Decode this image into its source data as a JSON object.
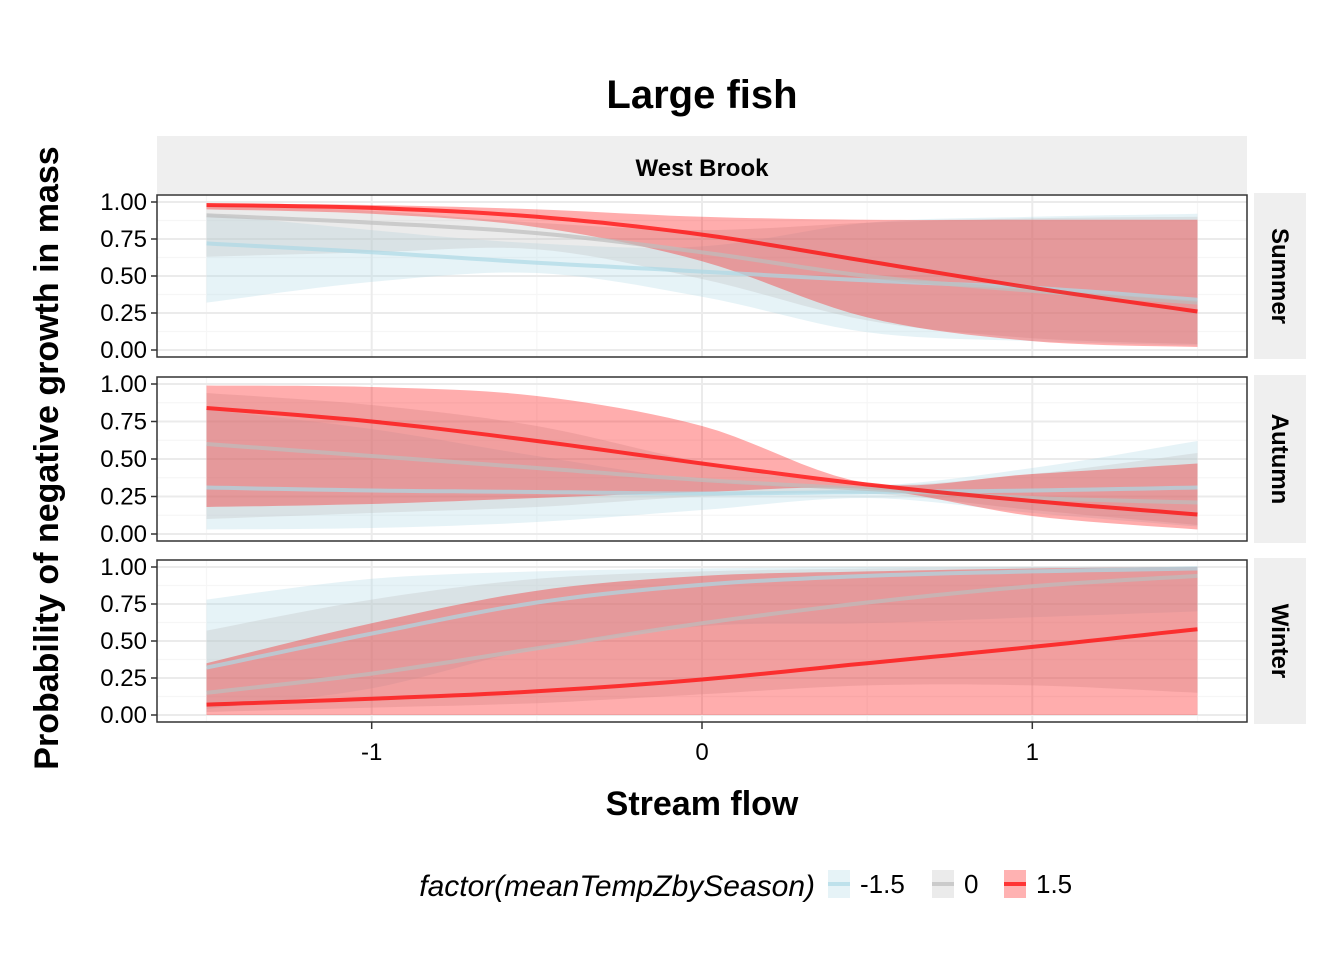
{
  "chart_data": {
    "type": "line",
    "title": "Large fish",
    "xlabel": "Stream flow",
    "ylabel": "Probability of negative growth in mass",
    "column_strip": "West Brook",
    "xlim": [
      -1.65,
      1.65
    ],
    "ylim": [
      0,
      1
    ],
    "x_ticks": [
      -1,
      0,
      1
    ],
    "x_tick_labels": [
      "-1",
      "0",
      "1"
    ],
    "y_ticks": [
      0,
      0.25,
      0.5,
      0.75,
      1
    ],
    "y_tick_labels": [
      "0.00",
      "0.25",
      "0.50",
      "0.75",
      "1.00"
    ],
    "grid": true,
    "legend": {
      "title": "factor(meanTempZbySeason)",
      "position": "bottom",
      "entries": [
        {
          "label": "-1.5",
          "color": "#add8e6"
        },
        {
          "label": "0",
          "color": "#bebebe"
        },
        {
          "label": "1.5",
          "color": "#ff0000"
        }
      ]
    },
    "panels": [
      {
        "label": "Summer",
        "series": [
          {
            "name": "-1.5",
            "color": "#add8e6",
            "x": [
              -1.5,
              -1,
              -0.5,
              0,
              0.5,
              1,
              1.5
            ],
            "y": [
              0.72,
              0.66,
              0.59,
              0.53,
              0.47,
              0.42,
              0.34
            ],
            "lower": [
              0.32,
              0.46,
              0.52,
              0.36,
              0.12,
              0.06,
              0.03
            ],
            "upper": [
              0.92,
              0.81,
              0.72,
              0.7,
              0.86,
              0.9,
              0.92
            ]
          },
          {
            "name": "0",
            "color": "#bebebe",
            "x": [
              -1.5,
              -1,
              -0.5,
              0,
              0.5,
              1,
              1.5
            ],
            "y": [
              0.91,
              0.86,
              0.79,
              0.66,
              0.5,
              0.4,
              0.32
            ],
            "lower": [
              0.63,
              0.66,
              0.68,
              0.48,
              0.2,
              0.08,
              0.04
            ],
            "upper": [
              0.98,
              0.94,
              0.86,
              0.81,
              0.86,
              0.89,
              0.9
            ]
          },
          {
            "name": "1.5",
            "color": "#ff0000",
            "x": [
              -1.5,
              -1,
              -0.5,
              0,
              0.5,
              1,
              1.5
            ],
            "y": [
              0.98,
              0.96,
              0.9,
              0.78,
              0.6,
              0.42,
              0.26
            ],
            "lower": [
              0.95,
              0.92,
              0.83,
              0.6,
              0.22,
              0.06,
              0.02
            ],
            "upper": [
              0.99,
              0.98,
              0.95,
              0.9,
              0.88,
              0.88,
              0.88
            ]
          }
        ]
      },
      {
        "label": "Autumn",
        "series": [
          {
            "name": "-1.5",
            "color": "#add8e6",
            "x": [
              -1.5,
              -1,
              -0.5,
              0,
              0.5,
              1,
              1.5
            ],
            "y": [
              0.31,
              0.29,
              0.28,
              0.27,
              0.28,
              0.29,
              0.31
            ],
            "lower": [
              0.03,
              0.04,
              0.08,
              0.16,
              0.24,
              0.14,
              0.05
            ],
            "upper": [
              0.83,
              0.7,
              0.52,
              0.36,
              0.32,
              0.44,
              0.62
            ]
          },
          {
            "name": "0",
            "color": "#bebebe",
            "x": [
              -1.5,
              -1,
              -0.5,
              0,
              0.5,
              1,
              1.5
            ],
            "y": [
              0.6,
              0.52,
              0.44,
              0.36,
              0.3,
              0.24,
              0.21
            ],
            "lower": [
              0.1,
              0.14,
              0.18,
              0.25,
              0.27,
              0.16,
              0.06
            ],
            "upper": [
              0.94,
              0.86,
              0.72,
              0.48,
              0.33,
              0.4,
              0.54
            ]
          },
          {
            "name": "1.5",
            "color": "#ff0000",
            "x": [
              -1.5,
              -1,
              -0.5,
              0,
              0.5,
              1,
              1.5
            ],
            "y": [
              0.84,
              0.75,
              0.62,
              0.47,
              0.33,
              0.22,
              0.13
            ],
            "lower": [
              0.18,
              0.2,
              0.24,
              0.28,
              0.3,
              0.12,
              0.03
            ],
            "upper": [
              0.99,
              0.98,
              0.92,
              0.72,
              0.34,
              0.4,
              0.47
            ]
          }
        ]
      },
      {
        "label": "Winter",
        "series": [
          {
            "name": "-1.5",
            "color": "#add8e6",
            "x": [
              -1.5,
              -1,
              -0.5,
              0,
              0.5,
              1,
              1.5
            ],
            "y": [
              0.32,
              0.55,
              0.76,
              0.88,
              0.94,
              0.97,
              0.99
            ],
            "lower": [
              0.04,
              0.18,
              0.45,
              0.6,
              0.62,
              0.66,
              0.7
            ],
            "upper": [
              0.78,
              0.92,
              0.97,
              0.99,
              1.0,
              1.0,
              1.0
            ]
          },
          {
            "name": "0",
            "color": "#bebebe",
            "x": [
              -1.5,
              -1,
              -0.5,
              0,
              0.5,
              1,
              1.5
            ],
            "y": [
              0.15,
              0.28,
              0.45,
              0.62,
              0.76,
              0.87,
              0.94
            ],
            "lower": [
              0.02,
              0.05,
              0.08,
              0.14,
              0.2,
              0.2,
              0.15
            ],
            "upper": [
              0.57,
              0.78,
              0.92,
              0.97,
              0.99,
              1.0,
              1.0
            ]
          },
          {
            "name": "1.5",
            "color": "#ff0000",
            "x": [
              -1.5,
              -1,
              -0.5,
              0,
              0.5,
              1,
              1.5
            ],
            "y": [
              0.07,
              0.11,
              0.16,
              0.24,
              0.35,
              0.46,
              0.58
            ],
            "lower": [
              0.0,
              0.0,
              0.0,
              0.0,
              0.0,
              0.0,
              0.0
            ],
            "upper": [
              0.35,
              0.62,
              0.84,
              0.94,
              0.97,
              0.99,
              1.0
            ]
          }
        ]
      }
    ]
  }
}
